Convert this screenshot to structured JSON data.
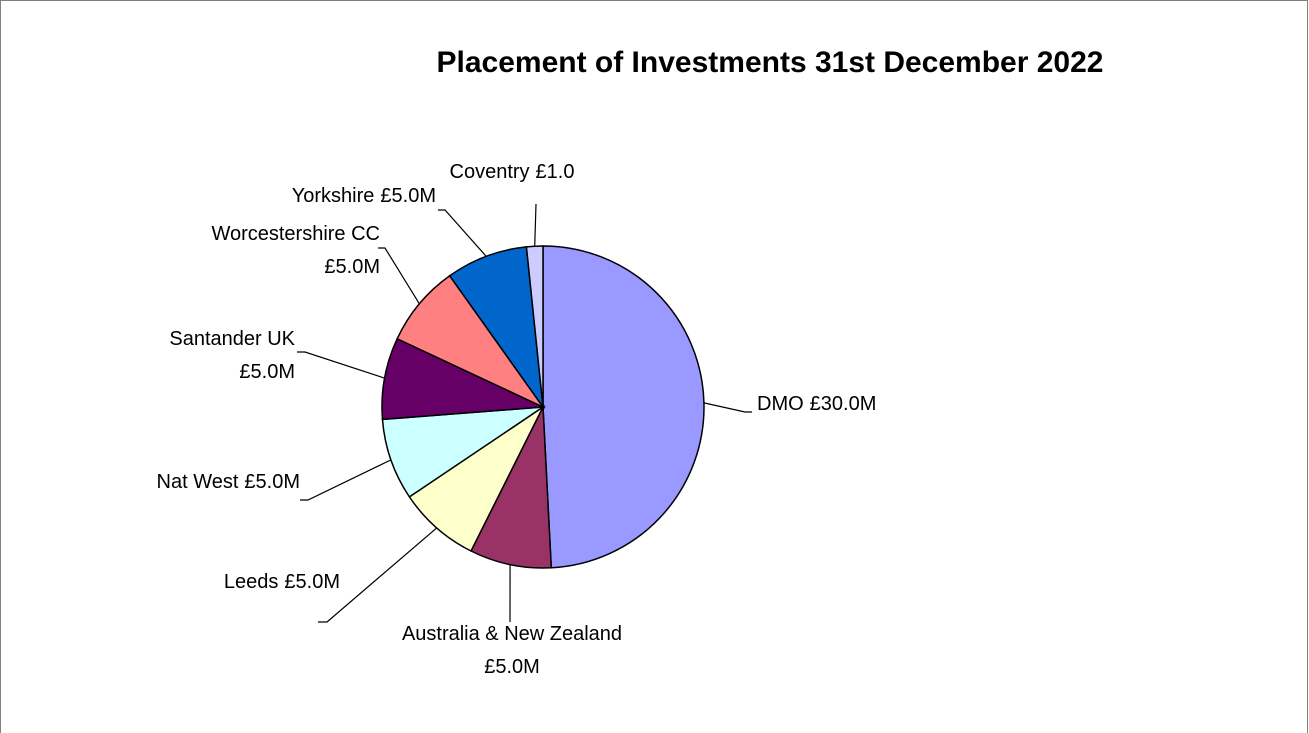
{
  "chart_data": {
    "type": "pie",
    "title": "Placement of Investments 31st December 2022",
    "categories": [
      "DMO",
      "Australia & New Zealand",
      "Leeds",
      "Nat West",
      "Santander UK",
      "Worcestershire CC",
      "Yorkshire",
      "Coventry"
    ],
    "values": [
      30,
      5,
      5,
      5,
      5,
      5,
      5,
      1
    ],
    "value_labels": [
      "£30.0M",
      "£5.0M",
      "£5.0M",
      "£5.0M",
      "£5.0M",
      "£5.0M",
      "£5.0M",
      "£1.0"
    ],
    "colors": [
      "#9999ff",
      "#993366",
      "#ffffcc",
      "#ccffff",
      "#660066",
      "#ff8080",
      "#0066cc",
      "#ccccff"
    ]
  }
}
